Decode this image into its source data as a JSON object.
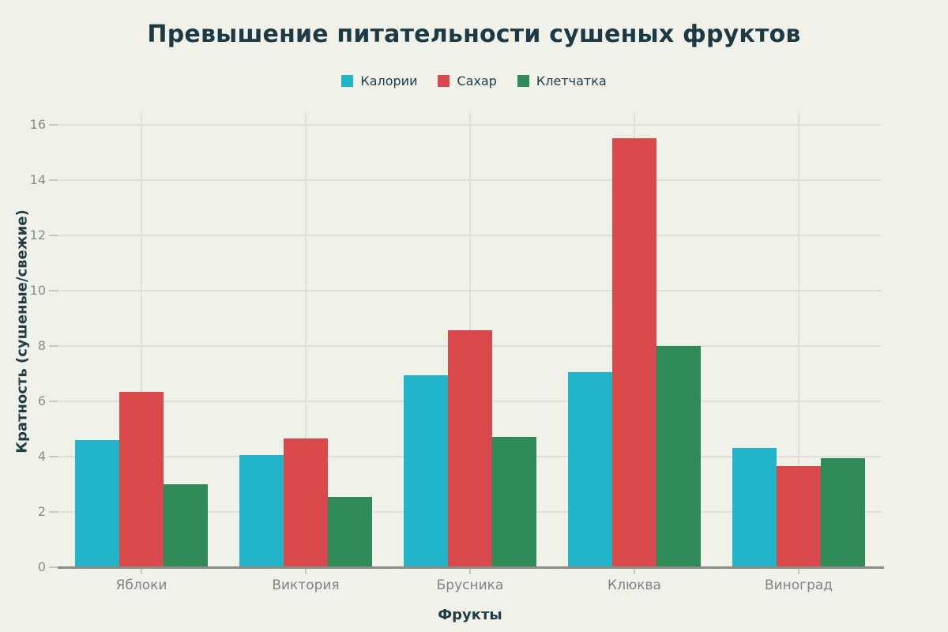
{
  "chart_data": {
    "type": "bar",
    "title": "Превышение питательности сушеных фруктов",
    "xlabel": "Фрукты",
    "ylabel": "Кратность (сушеные/свежие)",
    "categories": [
      "Яблоки",
      "Виктория",
      "Брусника",
      "Клюква",
      "Виноград"
    ],
    "series": [
      {
        "name": "Калории",
        "color": "#22b4c9",
        "values": [
          4.6,
          4.05,
          6.95,
          7.05,
          4.3
        ]
      },
      {
        "name": "Сахар",
        "color": "#d9494b",
        "values": [
          6.35,
          4.65,
          8.55,
          15.5,
          3.65
        ]
      },
      {
        "name": "Клетчатка",
        "color": "#2e8b57",
        "values": [
          3.0,
          2.55,
          4.7,
          8.0,
          3.95
        ]
      }
    ],
    "ylim": [
      0,
      16
    ],
    "yticks": [
      0,
      2,
      4,
      6,
      8,
      10,
      12,
      14,
      16
    ],
    "grid": true,
    "legend_position": "top"
  },
  "colors": {
    "background": "#f0f1e9",
    "title_text": "#1d3a44",
    "axis_title_text": "#1f3c46",
    "legend_text": "#1f3c46",
    "tick_text": "#888c8e",
    "category_text": "#7f8487",
    "gridline": "#dfe0d8",
    "tick_mark": "#c9c9c2",
    "axis_line": "#8b8b87"
  }
}
